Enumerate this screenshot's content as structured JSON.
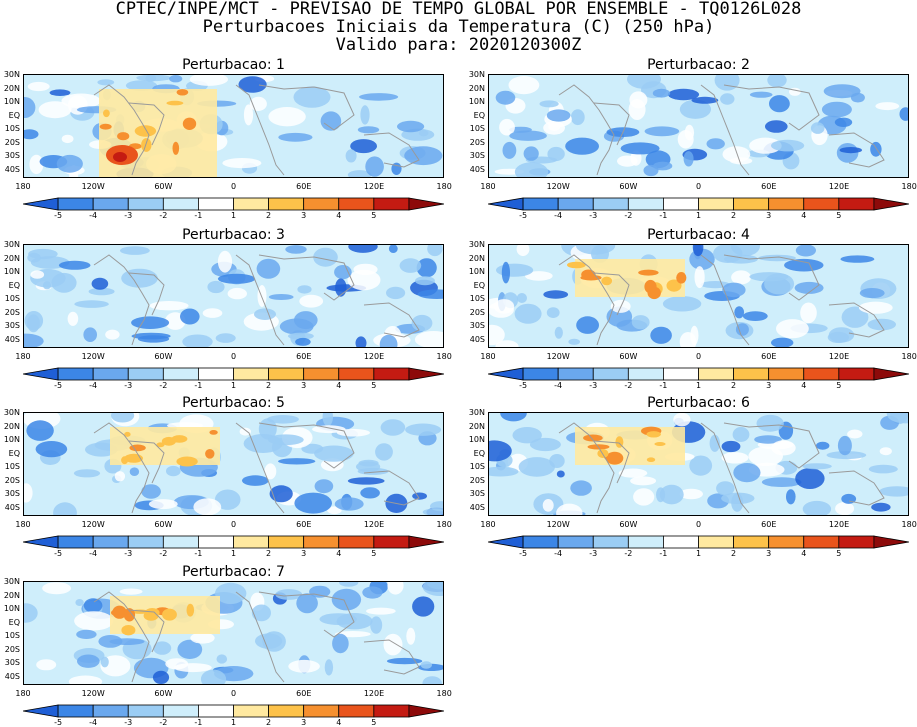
{
  "header": {
    "line1": "CPTEC/INPE/MCT - PREVISAO DE TEMPO GLOBAL POR ENSEMBLE - TQ0126L028",
    "line2": "Perturbacoes Iniciais da Temperatura (C) (250 hPa)",
    "line3": "Valido para: 2020120300Z"
  },
  "panels": [
    {
      "title": "Perturbacao: 1"
    },
    {
      "title": "Perturbacao: 2"
    },
    {
      "title": "Perturbacao: 3"
    },
    {
      "title": "Perturbacao: 4"
    },
    {
      "title": "Perturbacao: 5"
    },
    {
      "title": "Perturbacao: 6"
    },
    {
      "title": "Perturbacao: 7"
    }
  ],
  "y_ticks": [
    "30N",
    "20N",
    "10N",
    "EQ",
    "10S",
    "20S",
    "30S",
    "40S"
  ],
  "x_ticks": [
    "180",
    "120W",
    "60W",
    "0",
    "60E",
    "120E",
    "180"
  ],
  "colorbar": {
    "labels": [
      "-5",
      "-4",
      "-3",
      "-2",
      "-1",
      "1",
      "2",
      "3",
      "4",
      "5"
    ],
    "colors": [
      "#1f5fd6",
      "#3c86e6",
      "#6aa8ee",
      "#9bcdf4",
      "#cfeefb",
      "#ffffff",
      "#ffe9a0",
      "#fdc24a",
      "#f6902f",
      "#e9541c",
      "#c41b12",
      "#8d0a0a"
    ]
  }
}
